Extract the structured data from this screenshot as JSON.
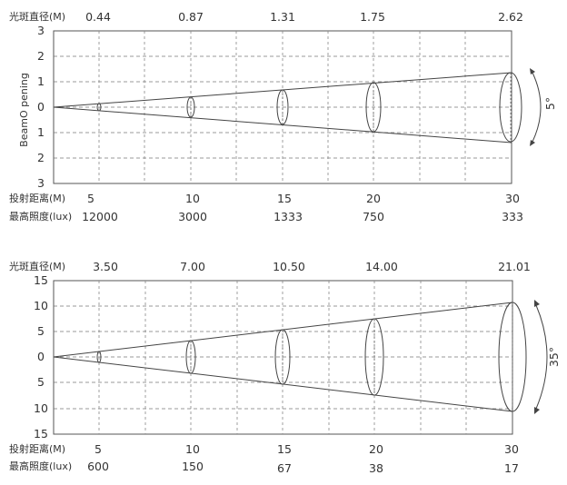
{
  "diagrams": [
    {
      "id": "beam-5",
      "spot_label": "光斑直径(M)",
      "spot_values": [
        "0.44",
        "0.87",
        "1.31",
        "1.75",
        "2.62"
      ],
      "y_ticks": [
        "3",
        "2",
        "1",
        "0",
        "1",
        "2",
        "3"
      ],
      "y_axis_label": "BeamO pening",
      "angle_label": "5°",
      "distance_label": "投射距离(M)",
      "distances": [
        "5",
        "10",
        "15",
        "20",
        "30"
      ],
      "illuminance_label": "最高照度(lux)",
      "illuminances": [
        "12000",
        "3000",
        "1333",
        "750",
        "333"
      ]
    },
    {
      "id": "beam-35",
      "spot_label": "光斑直径(M)",
      "spot_values": [
        "3.50",
        "7.00",
        "10.50",
        "14.00",
        "21.01"
      ],
      "y_ticks": [
        "15",
        "10",
        "5",
        "0",
        "5",
        "10",
        "15"
      ],
      "y_axis_label": "",
      "angle_label": "35°",
      "distance_label": "投射距离(M)",
      "distances": [
        "5",
        "10",
        "15",
        "20",
        "30"
      ],
      "illuminance_label": "最高照度(lux)",
      "illuminances": [
        "600",
        "150",
        "67",
        "38",
        "17"
      ]
    }
  ]
}
